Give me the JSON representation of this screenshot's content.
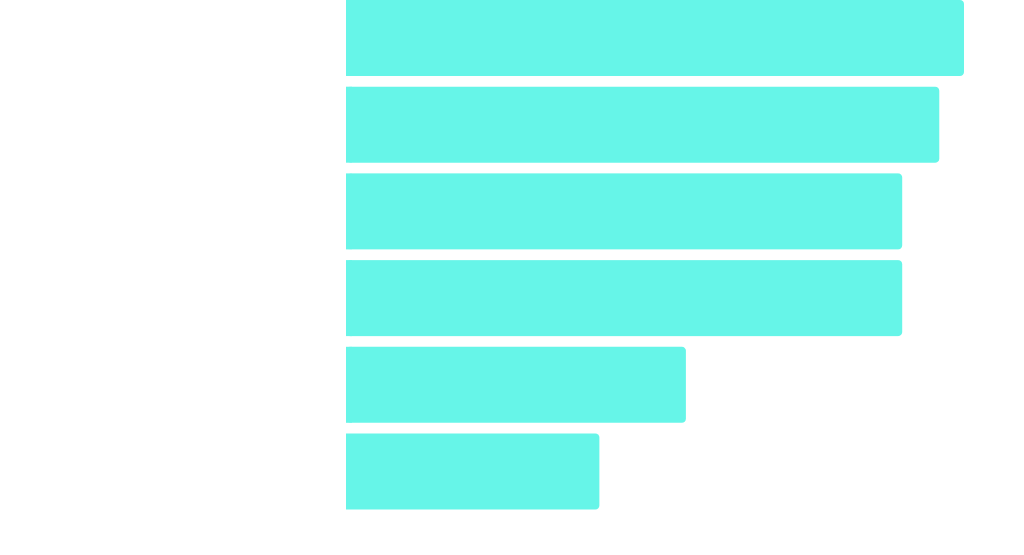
{
  "chart_data": {
    "type": "bar",
    "orientation": "horizontal",
    "categories": [
      "",
      "",
      "",
      "",
      "",
      ""
    ],
    "values": [
      100,
      96,
      90,
      90,
      55,
      41
    ],
    "xlim": [
      0,
      100
    ],
    "title": "",
    "xlabel": "",
    "ylabel": "",
    "legend": "none",
    "grid": false,
    "bar_color": "#66f5e8"
  }
}
